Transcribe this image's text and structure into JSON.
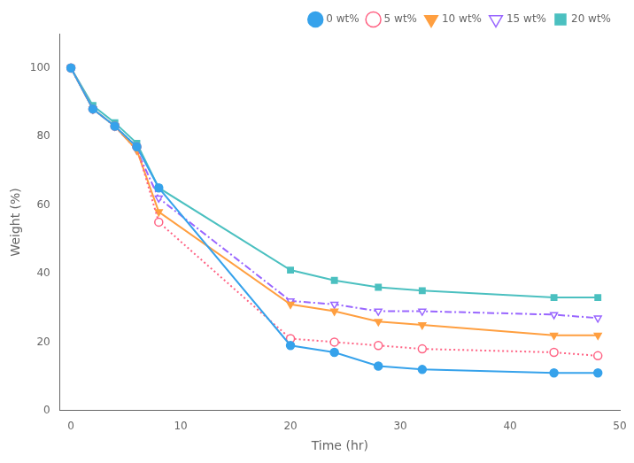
{
  "chart_data": {
    "type": "line",
    "xlabel": "Time (hr)",
    "ylabel": "Weight (%)",
    "xlim": [
      -1,
      50
    ],
    "ylim": [
      0,
      110
    ],
    "xticks": [
      0,
      10,
      20,
      30,
      40,
      50
    ],
    "yticks": [
      0,
      20,
      40,
      60,
      80,
      100
    ],
    "grid": false,
    "legend": "upper-right",
    "x": [
      0,
      2,
      4,
      6,
      8,
      20,
      24,
      28,
      32,
      44,
      48
    ],
    "series": [
      {
        "name": "0 wt%",
        "values": [
          100,
          88,
          83,
          77,
          65,
          19,
          17,
          13,
          12,
          11,
          11
        ],
        "marker": "circle",
        "line_style": "solid"
      },
      {
        "name": "5 wt%",
        "values": [
          100,
          88,
          83,
          77,
          55,
          21,
          20,
          19,
          18,
          17,
          16
        ],
        "marker": "circle-open",
        "line_style": "dotted"
      },
      {
        "name": "10 wt%",
        "values": [
          100,
          88,
          83,
          76,
          58,
          31,
          29,
          26,
          25,
          22,
          22
        ],
        "marker": "triangle-down",
        "line_style": "solid"
      },
      {
        "name": "15 wt%",
        "values": [
          100,
          88,
          83,
          76,
          62,
          32,
          31,
          29,
          29,
          28,
          27
        ],
        "marker": "triangle-down-open",
        "line_style": "dashdot"
      },
      {
        "name": "20 wt%",
        "values": [
          100,
          89,
          84,
          78,
          65,
          41,
          38,
          36,
          35,
          33,
          33
        ],
        "marker": "square",
        "line_style": "solid"
      }
    ]
  }
}
